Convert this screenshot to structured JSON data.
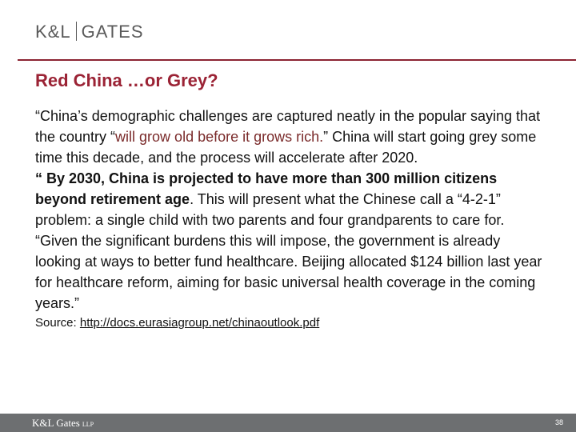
{
  "header": {
    "logo_left": "K&L",
    "logo_right": "GATES"
  },
  "title": "Red China …or Grey?",
  "paragraphs": [
    {
      "before": "“China’s demographic challenges are captured neatly in the popular saying that the country “",
      "quote": "will grow old before it grows rich.",
      "after": "” China will start going grey some time this decade, and the process will accelerate after 2020."
    },
    {
      "bold": "“ By 2030, China is projected to have more than 300 million citizens beyond retirement age",
      "after": ". This will present what the Chinese call a “4-2-1” problem: a single child with two parents and four grandparents to care for."
    },
    {
      "text": "“Given the significant burdens this will impose, the government is already looking at ways to better fund healthcare. Beijing allocated $124 billion last year for healthcare reform, aiming for basic universal health coverage in the coming years.”"
    }
  ],
  "source": {
    "label": "Source:",
    "link": "http://docs.eurasiagroup.net/chinaoutlook.pdf"
  },
  "footer": {
    "brand": "K&L Gates",
    "suffix": "LLP",
    "page": "38"
  }
}
